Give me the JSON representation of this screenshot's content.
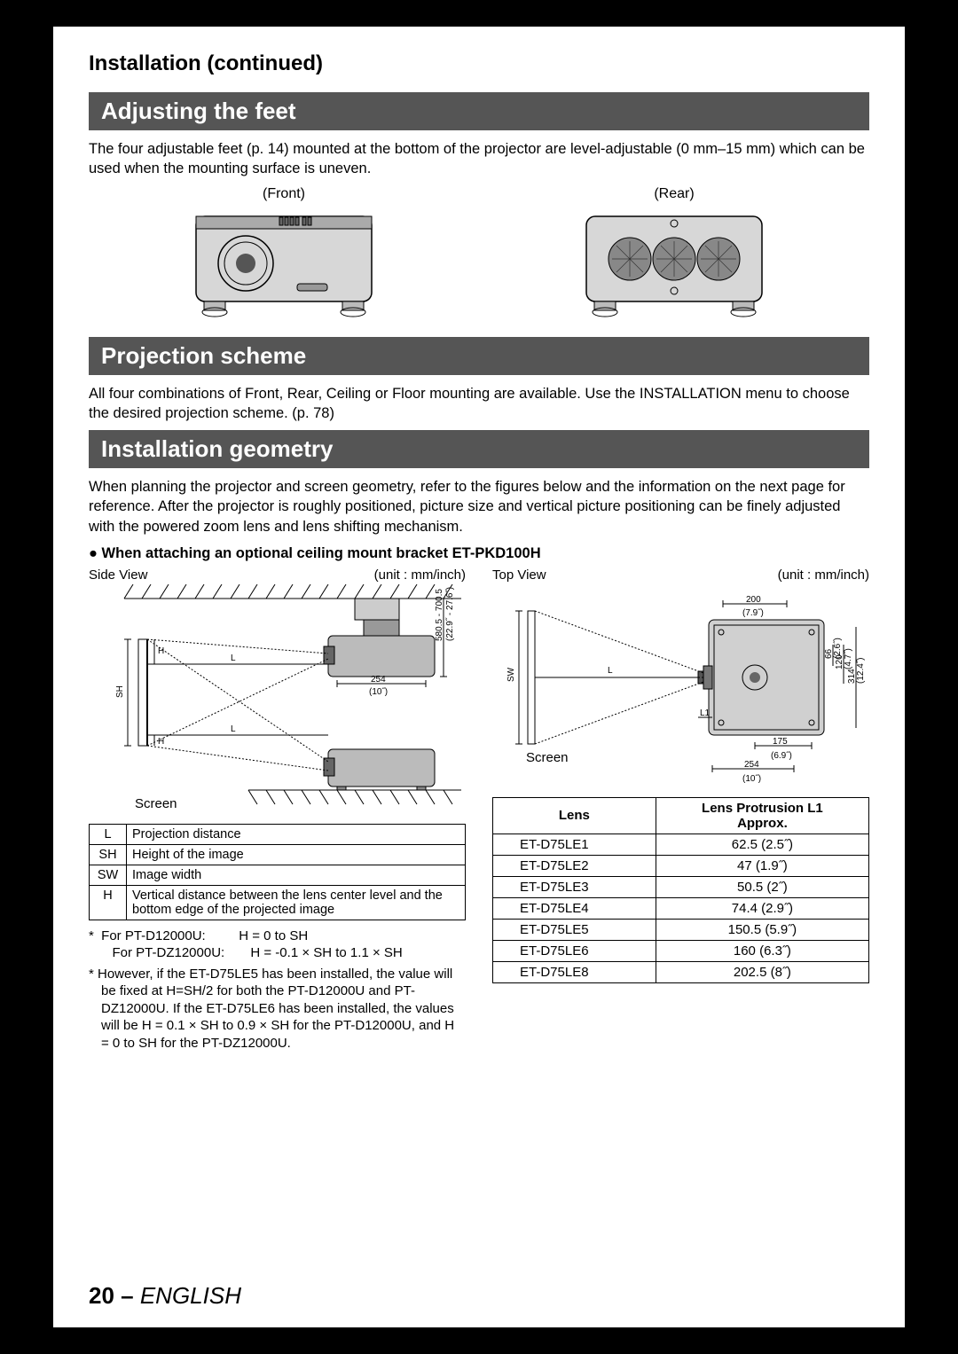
{
  "section_header": "Installation (continued)",
  "headings": {
    "feet": "Adjusting the feet",
    "scheme": "Projection scheme",
    "geometry": "Installation geometry"
  },
  "feet": {
    "text": "The four adjustable feet (p. 14) mounted at the bottom of the projector are level-adjustable (0 mm–15 mm) which can be used when the mounting surface is uneven.",
    "front_label": "(Front)",
    "rear_label": "(Rear)"
  },
  "scheme_text": "All four combinations of Front, Rear, Ceiling or Floor mounting are available. Use the INSTALLATION menu to choose the desired projection scheme. (p. 78)",
  "geometry_text": "When planning the projector and screen geometry, refer to the figures below and the information on the next page for reference. After the projector is roughly positioned, picture size and vertical picture positioning can be finely adjusted with the powered zoom lens and lens shifting mechanism.",
  "subheading": "● When attaching an optional ceiling mount bracket ET-PKD100H",
  "side_view": {
    "title": "Side View",
    "unit": "(unit : mm/inch)",
    "screen": "Screen"
  },
  "top_view": {
    "title": "Top View",
    "unit": "(unit : mm/inch)",
    "screen": "Screen"
  },
  "dims": {
    "d254": "254",
    "d254in": "(10˝)",
    "vrange": "580.5 - 700.5",
    "vrange_in": "(22.9˝ - 27.6˝)",
    "d200": "200",
    "d200in": "(7.9˝)",
    "d175": "175",
    "d175in": "(6.9˝)",
    "d66": "66",
    "d66in": "(2.6˝)",
    "d120": "120",
    "d120in": "(4.7˝)",
    "d314": "314",
    "d314in": "(12.4˝)"
  },
  "legend": [
    {
      "k": "L",
      "v": "Projection distance"
    },
    {
      "k": "SH",
      "v": "Height of the image"
    },
    {
      "k": "SW",
      "v": "Image width"
    },
    {
      "k": "H",
      "v": "Vertical distance between the lens center level and the bottom edge of the projected image"
    }
  ],
  "note1": "*  For PT-D12000U:         H = 0 to SH\n   For PT-DZ12000U:       H = -0.1 × SH to 1.1 × SH",
  "note2": "*  However, if the ET-D75LE5 has been installed, the value will be fixed at H=SH/2 for both the PT-D12000U and PT-DZ12000U. If the ET-D75LE6 has been installed, the values will be H = 0.1 × SH to 0.9 × SH for the PT-D12000U, and H = 0 to SH for the PT-DZ12000U.",
  "lens_table": {
    "col1": "Lens",
    "col2": "Lens Protrusion L1\nApprox.",
    "rows": [
      [
        "ET-D75LE1",
        "62.5 (2.5˝)"
      ],
      [
        "ET-D75LE2",
        "47 (1.9˝)"
      ],
      [
        "ET-D75LE3",
        "50.5 (2˝)"
      ],
      [
        "ET-D75LE4",
        "74.4 (2.9˝)"
      ],
      [
        "ET-D75LE5",
        "150.5 (5.9˝)"
      ],
      [
        "ET-D75LE6",
        "160 (6.3˝)"
      ],
      [
        "ET-D75LE8",
        "202.5 (8˝)"
      ]
    ]
  },
  "footer": {
    "page": "20",
    "dash": " – ",
    "lang": "ENGLISH"
  }
}
